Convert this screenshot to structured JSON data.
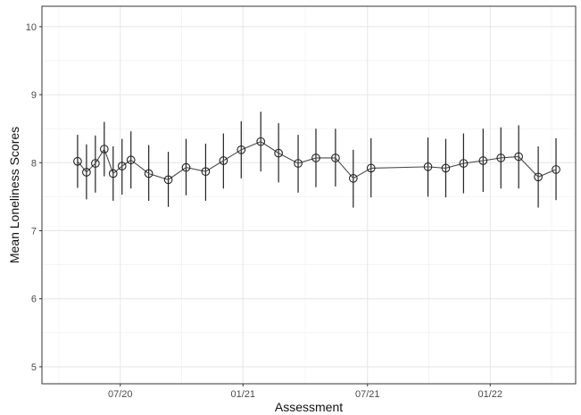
{
  "chart_data": {
    "type": "line",
    "title": "",
    "xlabel": "Assessment",
    "ylabel": "Mean Loneliness Scores",
    "ylim": [
      4.75,
      10.3
    ],
    "yticks": [
      5,
      6,
      7,
      8,
      9,
      10
    ],
    "xlim": [
      0,
      28
    ],
    "xticks": [
      {
        "label": "07/20",
        "pos": 3.3
      },
      {
        "label": "01/21",
        "pos": 10.2
      },
      {
        "label": "07/21",
        "pos": 17.2
      },
      {
        "label": "01/22",
        "pos": 24.1
      }
    ],
    "grid": true,
    "legend": "none",
    "colors": {
      "line": "#4a4a4a",
      "errorbar": "#222222",
      "point_edge": "#222222",
      "grid": "#e6e6e6",
      "panel_border": "#333333"
    },
    "series": [
      {
        "points": [
          {
            "x": 0.9,
            "y": 8.02,
            "lo": 7.63,
            "hi": 8.41
          },
          {
            "x": 1.4,
            "y": 7.86,
            "lo": 7.46,
            "hi": 8.27
          },
          {
            "x": 1.9,
            "y": 7.99,
            "lo": 7.56,
            "hi": 8.4
          },
          {
            "x": 2.4,
            "y": 8.2,
            "lo": 7.8,
            "hi": 8.6
          },
          {
            "x": 2.9,
            "y": 7.84,
            "lo": 7.44,
            "hi": 8.24
          },
          {
            "x": 3.4,
            "y": 7.95,
            "lo": 7.53,
            "hi": 8.35
          },
          {
            "x": 3.9,
            "y": 8.04,
            "lo": 7.62,
            "hi": 8.46
          },
          {
            "x": 4.9,
            "y": 7.84,
            "lo": 7.44,
            "hi": 8.26
          },
          {
            "x": 6.0,
            "y": 7.75,
            "lo": 7.35,
            "hi": 8.16
          },
          {
            "x": 7.0,
            "y": 7.93,
            "lo": 7.52,
            "hi": 8.35
          },
          {
            "x": 8.1,
            "y": 7.87,
            "lo": 7.44,
            "hi": 8.28
          },
          {
            "x": 9.1,
            "y": 8.03,
            "lo": 7.62,
            "hi": 8.43
          },
          {
            "x": 10.1,
            "y": 8.19,
            "lo": 7.77,
            "hi": 8.61
          },
          {
            "x": 11.2,
            "y": 8.31,
            "lo": 7.87,
            "hi": 8.75
          },
          {
            "x": 12.2,
            "y": 8.14,
            "lo": 7.71,
            "hi": 8.58
          },
          {
            "x": 13.3,
            "y": 7.99,
            "lo": 7.56,
            "hi": 8.41
          },
          {
            "x": 14.3,
            "y": 8.07,
            "lo": 7.64,
            "hi": 8.5
          },
          {
            "x": 15.4,
            "y": 8.07,
            "lo": 7.65,
            "hi": 8.5
          },
          {
            "x": 16.4,
            "y": 7.77,
            "lo": 7.34,
            "hi": 8.19
          },
          {
            "x": 17.4,
            "y": 7.92,
            "lo": 7.49,
            "hi": 8.36
          },
          {
            "x": 20.6,
            "y": 7.94,
            "lo": 7.5,
            "hi": 8.37
          },
          {
            "x": 21.6,
            "y": 7.92,
            "lo": 7.49,
            "hi": 8.35
          },
          {
            "x": 22.6,
            "y": 7.99,
            "lo": 7.55,
            "hi": 8.43
          },
          {
            "x": 23.7,
            "y": 8.03,
            "lo": 7.57,
            "hi": 8.5
          },
          {
            "x": 24.7,
            "y": 8.07,
            "lo": 7.62,
            "hi": 8.52
          },
          {
            "x": 25.7,
            "y": 8.09,
            "lo": 7.62,
            "hi": 8.55
          },
          {
            "x": 26.8,
            "y": 7.79,
            "lo": 7.34,
            "hi": 8.24
          },
          {
            "x": 27.8,
            "y": 7.9,
            "lo": 7.45,
            "hi": 8.36
          }
        ]
      }
    ]
  }
}
